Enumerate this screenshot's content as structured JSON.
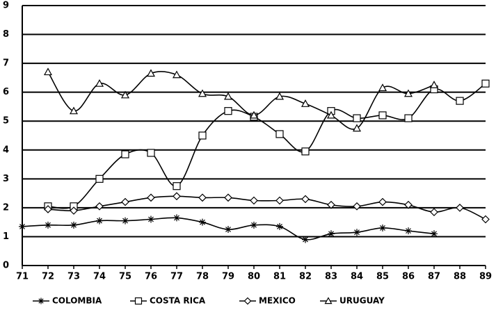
{
  "chart_data": {
    "type": "line",
    "categories": [
      "71",
      "72",
      "73",
      "74",
      "75",
      "76",
      "77",
      "78",
      "79",
      "80",
      "81",
      "82",
      "83",
      "84",
      "85",
      "86",
      "87",
      "88",
      "89"
    ],
    "ylim": [
      0,
      9
    ],
    "yticks": [
      0,
      1,
      2,
      3,
      4,
      5,
      6,
      7,
      8,
      9
    ],
    "grid": true,
    "legend": "bottom",
    "series": [
      {
        "name": "COLOMBIA",
        "color": "#000000",
        "marker": "star",
        "values": [
          1.35,
          1.4,
          1.4,
          1.55,
          1.55,
          1.6,
          1.65,
          1.5,
          1.25,
          1.4,
          1.35,
          0.9,
          1.1,
          1.15,
          1.3,
          1.2,
          1.1,
          null,
          null
        ]
      },
      {
        "name": "COSTA RICA",
        "color": "#000000",
        "marker": "square",
        "values": [
          null,
          2.05,
          2.05,
          3.0,
          3.85,
          3.9,
          2.75,
          4.5,
          5.35,
          5.15,
          4.55,
          3.95,
          5.35,
          5.1,
          5.2,
          5.1,
          6.1,
          5.7,
          6.3
        ]
      },
      {
        "name": "MEXICO",
        "color": "#000000",
        "marker": "diamond",
        "values": [
          null,
          1.95,
          1.9,
          2.05,
          2.2,
          2.35,
          2.4,
          2.35,
          2.35,
          2.25,
          2.25,
          2.3,
          2.1,
          2.05,
          2.2,
          2.1,
          1.85,
          2.0,
          1.6
        ]
      },
      {
        "name": "URUGUAY",
        "color": "#000000",
        "marker": "triangle",
        "values": [
          null,
          6.7,
          5.35,
          6.3,
          5.9,
          6.65,
          6.6,
          5.95,
          5.85,
          5.2,
          5.85,
          5.6,
          5.2,
          4.75,
          6.15,
          5.95,
          6.25,
          null,
          null
        ]
      }
    ]
  }
}
